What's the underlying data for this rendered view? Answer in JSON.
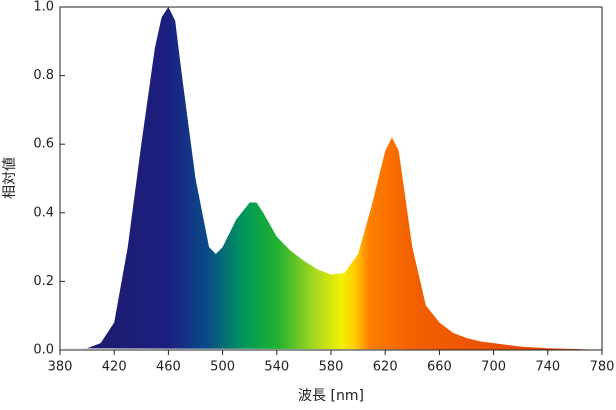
{
  "chart_data": {
    "type": "area",
    "xlabel": "波長 [nm]",
    "ylabel": "相対値",
    "x": [
      380,
      390,
      400,
      410,
      420,
      430,
      440,
      450,
      455,
      460,
      465,
      470,
      480,
      490,
      495,
      500,
      510,
      520,
      525,
      530,
      540,
      550,
      560,
      570,
      580,
      590,
      600,
      610,
      620,
      625,
      630,
      640,
      650,
      660,
      670,
      680,
      690,
      700,
      720,
      740,
      760,
      780
    ],
    "values": [
      0.005,
      0.005,
      0.005,
      0.02,
      0.08,
      0.3,
      0.6,
      0.88,
      0.97,
      1.0,
      0.96,
      0.8,
      0.5,
      0.3,
      0.28,
      0.3,
      0.38,
      0.43,
      0.43,
      0.4,
      0.33,
      0.29,
      0.26,
      0.235,
      0.22,
      0.225,
      0.28,
      0.42,
      0.58,
      0.62,
      0.58,
      0.3,
      0.13,
      0.08,
      0.05,
      0.035,
      0.025,
      0.02,
      0.01,
      0.005,
      0.003,
      0.0
    ],
    "xlim": [
      380,
      780
    ],
    "xticks": [
      380,
      420,
      460,
      500,
      540,
      580,
      620,
      660,
      700,
      740,
      780
    ],
    "ylim": [
      0,
      1
    ],
    "yticks": [
      {
        "value": 0,
        "label": "0.0"
      },
      0.2,
      0.4,
      0.6,
      0.8,
      {
        "value": 1,
        "label": "1.0"
      }
    ]
  }
}
